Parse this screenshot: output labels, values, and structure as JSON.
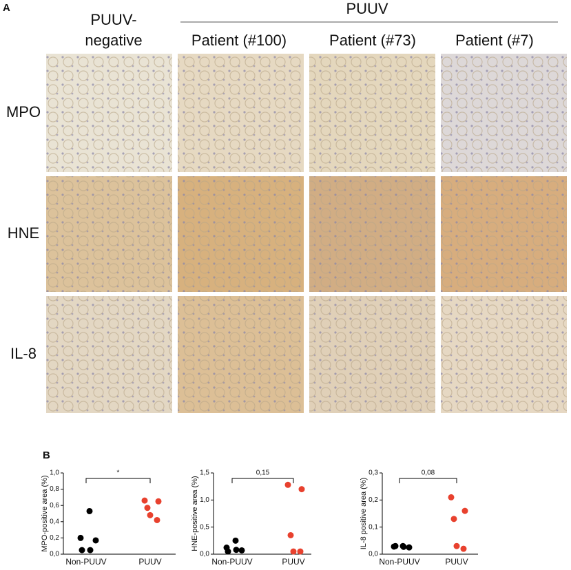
{
  "panel_a": {
    "label": "A",
    "group_header": "PUUV",
    "negative_header": [
      "PUUV-",
      "negative"
    ],
    "columns": [
      "Patient (#100)",
      "Patient (#73)",
      "Patient (#7)"
    ],
    "rows": [
      "MPO",
      "HNE",
      "IL-8"
    ]
  },
  "panel_b_label": "B",
  "chart_data": [
    {
      "type": "scatter",
      "ylabel": "MPO-positive area (%)",
      "categories": [
        "Non-PUUV",
        "PUUV"
      ],
      "series": [
        {
          "name": "Non-PUUV",
          "color": "#000000",
          "values": [
            0.53,
            0.2,
            0.17,
            0.05,
            0.05
          ]
        },
        {
          "name": "PUUV",
          "color": "#e8412e",
          "values": [
            0.66,
            0.65,
            0.57,
            0.48,
            0.42
          ]
        }
      ],
      "ylim": [
        0,
        1.0
      ],
      "yticks": [
        {
          "value": 0,
          "label": "0,0"
        },
        {
          "value": 0.2,
          "label": "0,2"
        },
        {
          "value": 0.4,
          "label": "0,4"
        },
        {
          "value": 0.6,
          "label": "0,6"
        },
        {
          "value": 0.8,
          "label": "0,8"
        },
        {
          "value": 1.0,
          "label": "1,0"
        }
      ],
      "annotation": "*"
    },
    {
      "type": "scatter",
      "ylabel": "HNE-positive area (%)",
      "categories": [
        "Non-PUUV",
        "PUUV"
      ],
      "series": [
        {
          "name": "Non-PUUV",
          "color": "#000000",
          "values": [
            0.25,
            0.12,
            0.07,
            0.05,
            0.08
          ]
        },
        {
          "name": "PUUV",
          "color": "#e8412e",
          "values": [
            1.28,
            1.2,
            0.35,
            0.05,
            0.05
          ]
        }
      ],
      "ylim": [
        0,
        1.5
      ],
      "yticks": [
        {
          "value": 0,
          "label": "0,0"
        },
        {
          "value": 0.5,
          "label": "0,5"
        },
        {
          "value": 1.0,
          "label": "1,0"
        },
        {
          "value": 1.5,
          "label": "1,5"
        }
      ],
      "annotation": "0,15"
    },
    {
      "type": "scatter",
      "ylabel": "IL-8 positive area (%)",
      "categories": [
        "Non-PUUV",
        "PUUV"
      ],
      "series": [
        {
          "name": "Non-PUUV",
          "color": "#000000",
          "values": [
            0.03,
            0.028,
            0.025,
            0.03,
            0.027
          ]
        },
        {
          "name": "PUUV",
          "color": "#e8412e",
          "values": [
            0.21,
            0.16,
            0.13,
            0.03,
            0.02
          ]
        }
      ],
      "ylim": [
        0,
        0.3
      ],
      "yticks": [
        {
          "value": 0,
          "label": "0,0"
        },
        {
          "value": 0.1,
          "label": "0,1"
        },
        {
          "value": 0.2,
          "label": "0,2"
        },
        {
          "value": 0.3,
          "label": "0,3"
        }
      ],
      "annotation": "0,08"
    }
  ]
}
